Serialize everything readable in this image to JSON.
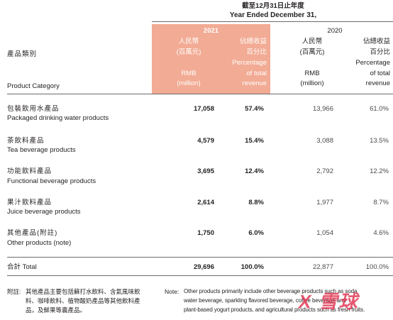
{
  "header": {
    "period_cn": "截至12月31日止年度",
    "period_en": "Year Ended December 31,",
    "category_cn": "產品類別",
    "category_en": "Product Category",
    "year_2021": "2021",
    "year_2020": "2020",
    "rmb_cn": "人民幣",
    "rmb_unit_cn": "(百萬元)",
    "pct_cn_1": "佔總收益",
    "pct_cn_2": "百分比",
    "rmb_en": "RMB",
    "rmb_unit_en": "(million)",
    "pct_en_1": "Percentage",
    "pct_en_2": "of total",
    "pct_en_3": "revenue"
  },
  "rows": [
    {
      "cn": "包裝飲用水產品",
      "en": "Packaged drinking water products",
      "rmb_2021": "17,058",
      "pct_2021": "57.4%",
      "rmb_2020": "13,966",
      "pct_2020": "61.0%"
    },
    {
      "cn": "茶飲料產品",
      "en": "Tea beverage products",
      "rmb_2021": "4,579",
      "pct_2021": "15.4%",
      "rmb_2020": "3,088",
      "pct_2020": "13.5%"
    },
    {
      "cn": "功能飲料產品",
      "en": "Functional beverage products",
      "rmb_2021": "3,695",
      "pct_2021": "12.4%",
      "rmb_2020": "2,792",
      "pct_2020": "12.2%"
    },
    {
      "cn": "果汁飲料產品",
      "en": "Juice beverage products",
      "rmb_2021": "2,614",
      "pct_2021": "8.8%",
      "rmb_2020": "1,977",
      "pct_2020": "8.7%"
    },
    {
      "cn": "其他產品(附註)",
      "en": "Other products (note)",
      "rmb_2021": "1,750",
      "pct_2021": "6.0%",
      "rmb_2020": "1,054",
      "pct_2020": "4.6%"
    }
  ],
  "total": {
    "label": "合計 Total",
    "rmb_2021": "29,696",
    "pct_2021": "100.0%",
    "rmb_2020": "22,877",
    "pct_2020": "100.0%"
  },
  "notes": {
    "cn_label": "附註:",
    "cn_line1": "其他產品主要包括蘇打水飲料、含氣風味飲",
    "cn_line2": "料、咖啡飲料、植物酸奶產品等其他飲料產",
    "cn_line3": "品，及鮮果等農產品。",
    "en_label": "Note:",
    "en_line1": "Other products primarily include other beverage products such as soda",
    "en_line2": "water beverage, sparkling flavored beverage, coffee beverage and",
    "en_line3": "plant-based yogurt products, and agricultural products such as fresh fruits."
  },
  "watermark": "X 雪球"
}
